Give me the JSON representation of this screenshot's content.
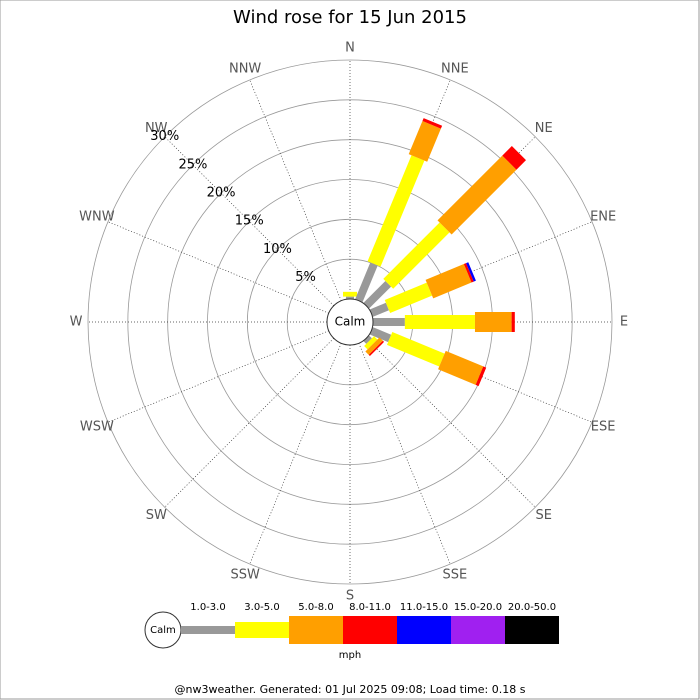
{
  "chart_data": {
    "type": "rose",
    "title": "Wind rose for 15 Jun 2015",
    "categories": [
      "N",
      "NNE",
      "NE",
      "ENE",
      "E",
      "ESE",
      "SE",
      "SSE",
      "S",
      "SSW",
      "SW",
      "WSW",
      "W",
      "WNW",
      "NW",
      "NNW"
    ],
    "rlim": [
      0,
      30
    ],
    "rticks": [
      {
        "value": 5,
        "label": "5%"
      },
      {
        "value": 10,
        "label": "10%"
      },
      {
        "value": 15,
        "label": "15%"
      },
      {
        "value": 20,
        "label": "20%"
      },
      {
        "value": 25,
        "label": "25%"
      },
      {
        "value": 30,
        "label": "30%"
      }
    ],
    "calm_label": "Calm",
    "legend_title": "mph",
    "series": [
      {
        "name": "1.0-3.0",
        "color": "#999999",
        "values": [
          0.3,
          5.0,
          3.9,
          2.2,
          4.0,
          2.5,
          0.5,
          0,
          0,
          0,
          0,
          0,
          0,
          0,
          0,
          0
        ]
      },
      {
        "name": "3.0-5.0",
        "color": "#ffff00",
        "values": [
          0.6,
          14.4,
          10.0,
          5.7,
          8.8,
          7.1,
          0.6,
          0,
          0,
          0,
          0,
          0,
          0,
          0,
          0,
          0
        ]
      },
      {
        "name": "5.0-8.0",
        "color": "#ff9f00",
        "values": [
          0,
          4.5,
          11.5,
          5.2,
          4.6,
          5.1,
          0.6,
          0,
          0,
          0,
          0,
          0,
          0,
          0,
          0,
          0
        ]
      },
      {
        "name": "8.0-11.0",
        "color": "#ff0000",
        "values": [
          0,
          0.4,
          1.7,
          0.3,
          0.4,
          0.4,
          0.2,
          0,
          0,
          0,
          0,
          0,
          0,
          0,
          0,
          0
        ]
      },
      {
        "name": "11.0-15.0",
        "color": "#0000ff",
        "values": [
          0,
          0,
          0,
          0.3,
          0,
          0,
          0,
          0,
          0,
          0,
          0,
          0,
          0,
          0,
          0,
          0
        ]
      },
      {
        "name": "15.0-20.0",
        "color": "#a020f0",
        "values": [
          0,
          0,
          0,
          0,
          0,
          0,
          0,
          0,
          0,
          0,
          0,
          0,
          0,
          0,
          0,
          0
        ]
      },
      {
        "name": "20.0-50.0",
        "color": "#000000",
        "values": [
          0,
          0,
          0,
          0,
          0,
          0,
          0,
          0,
          0,
          0,
          0,
          0,
          0,
          0,
          0,
          0
        ]
      }
    ],
    "footer": "@nw3weather. Generated: 01 Jul 2025 09:08; Load time: 0.18 s"
  }
}
